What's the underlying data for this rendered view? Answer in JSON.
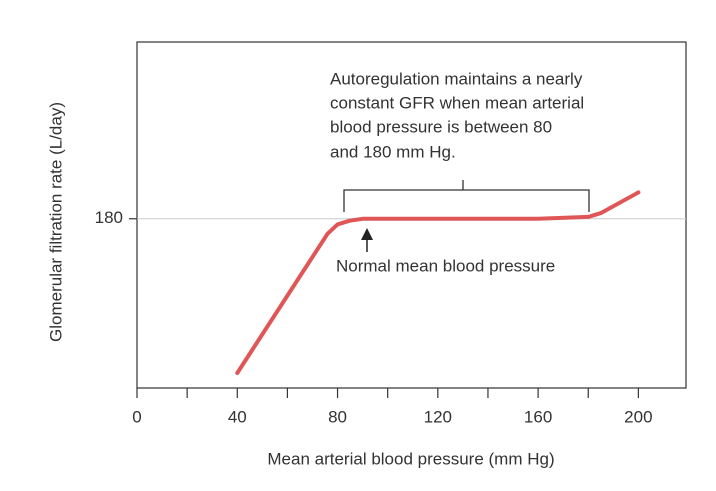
{
  "chart_data": {
    "type": "line",
    "x_label": "Mean arterial blood pressure (mm Hg)",
    "y_label": "Glomerular filtration rate (L/day)",
    "annotations": [
      "Autoregulation maintains a nearly",
      "constant GFR when mean arterial",
      "blood pressure is between 80",
      "and 180 mm Hg.",
      "Normal mean blood pressure"
    ],
    "series": [
      {
        "name": "GFR",
        "color": "#e05656",
        "x": [
          40,
          76,
          80,
          85,
          90,
          120,
          160,
          180,
          185,
          200
        ],
        "values": [
          98,
          172,
          177,
          179,
          180,
          180,
          180,
          181,
          183,
          194
        ]
      }
    ],
    "xlim": [
      0,
      219
    ],
    "xticks": [
      0,
      40,
      80,
      120,
      160,
      200
    ],
    "xminorticks": [
      20,
      60,
      100,
      140,
      180
    ],
    "ylim": [
      90,
      274
    ],
    "yticks": [
      180
    ],
    "grid": true
  }
}
